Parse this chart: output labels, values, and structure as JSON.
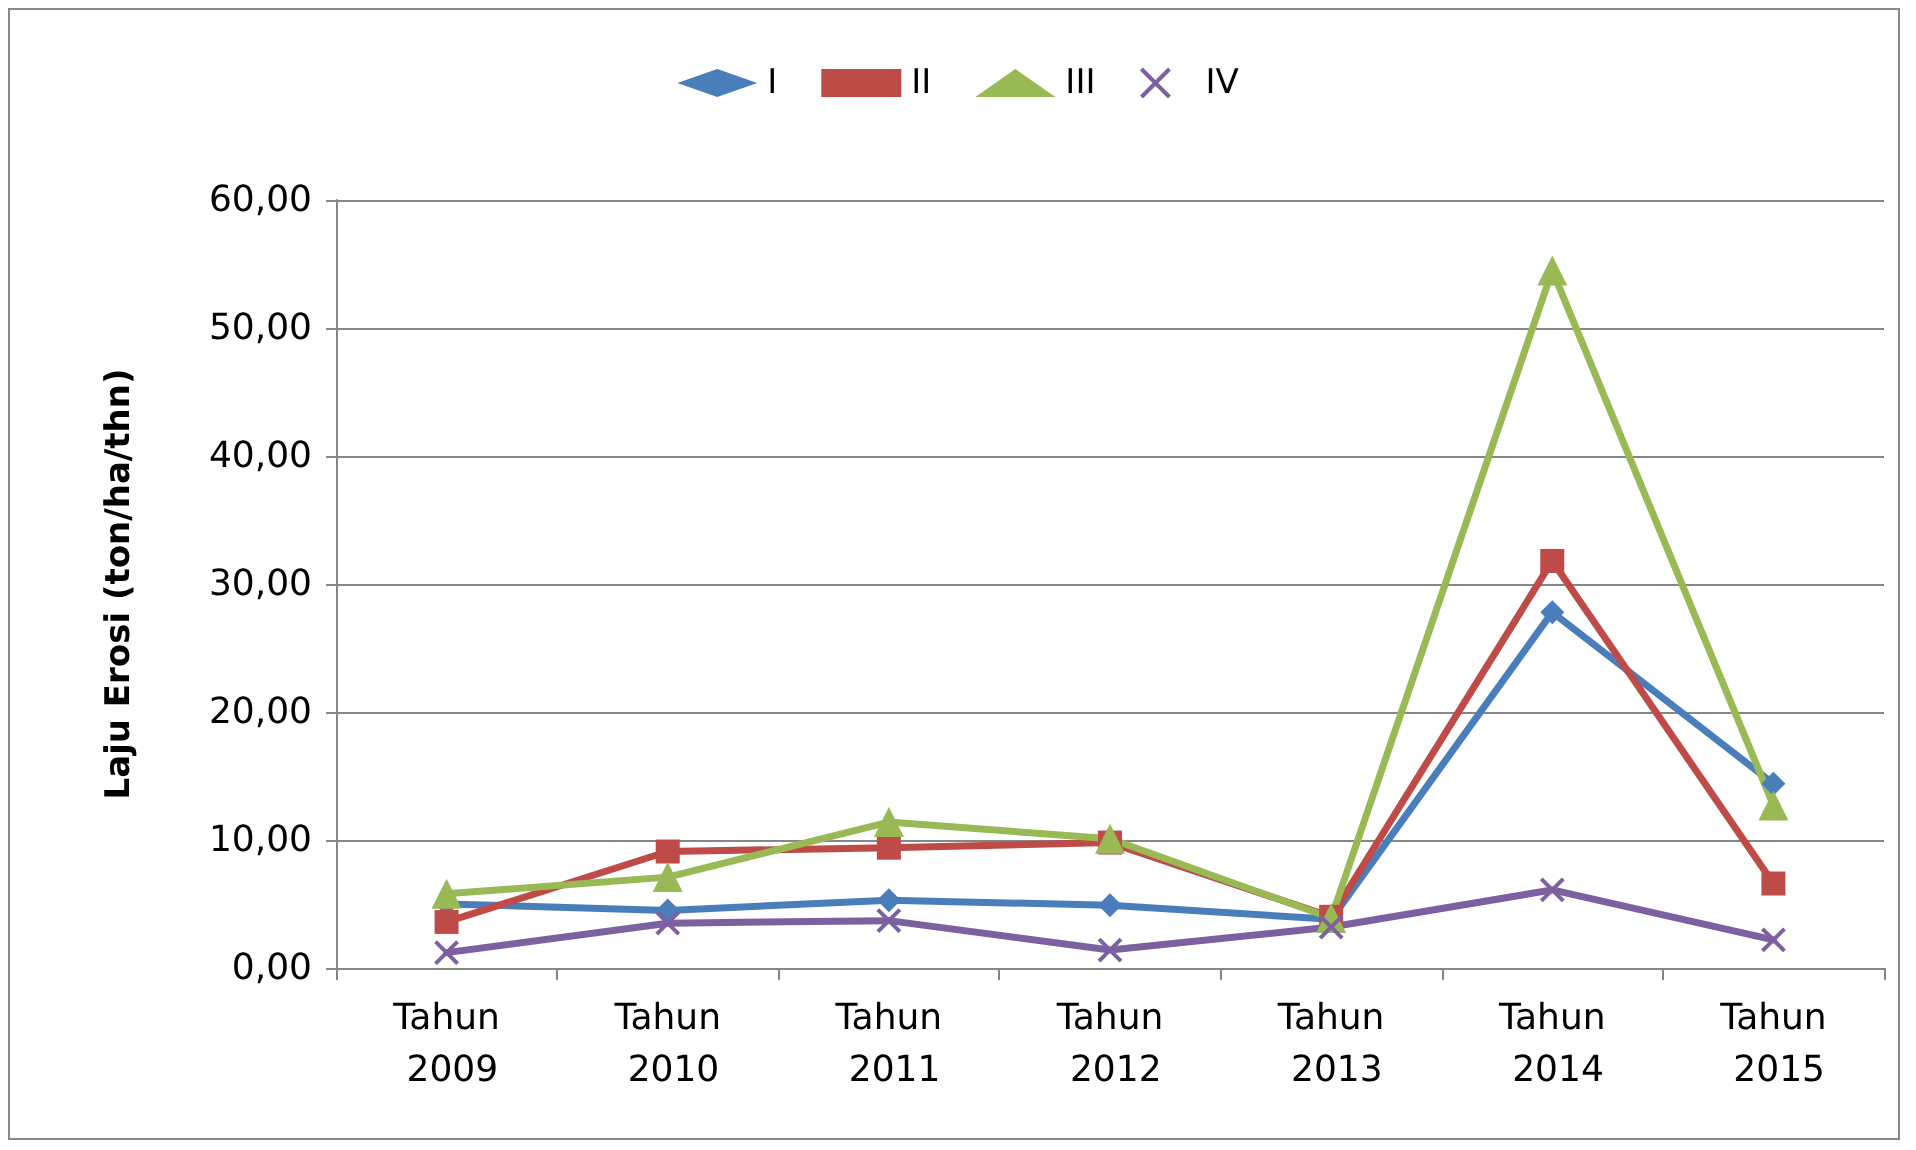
{
  "chart_data": {
    "type": "line",
    "ylabel": "Laju Erosi (ton/ha/thn)",
    "categories": [
      "Tahun 2009",
      "Tahun 2010",
      "Tahun 2011",
      "Tahun 2012",
      "Tahun 2013",
      "Tahun 2014",
      "Tahun 2015"
    ],
    "series": [
      {
        "name": "I",
        "color": "#4a7ebb",
        "marker": "diamond",
        "values": [
          5.0,
          4.5,
          5.3,
          4.9,
          3.8,
          27.8,
          14.4
        ]
      },
      {
        "name": "II",
        "color": "#be4b48",
        "marker": "square",
        "values": [
          3.6,
          9.1,
          9.4,
          9.8,
          4.0,
          31.8,
          6.6
        ]
      },
      {
        "name": "III",
        "color": "#98b954",
        "marker": "triangle",
        "values": [
          5.8,
          7.1,
          11.4,
          10.1,
          3.9,
          54.5,
          12.7
        ]
      },
      {
        "name": "IV",
        "color": "#7d60a0",
        "marker": "cross",
        "values": [
          1.2,
          3.5,
          3.7,
          1.4,
          3.2,
          6.1,
          2.2
        ]
      }
    ],
    "ylim": [
      0,
      60
    ],
    "yticks": [
      {
        "value": 0,
        "label": "0,00"
      },
      {
        "value": 10,
        "label": "10,00"
      },
      {
        "value": 20,
        "label": "20,00"
      },
      {
        "value": 30,
        "label": "30,00"
      },
      {
        "value": 40,
        "label": "40,00"
      },
      {
        "value": 50,
        "label": "50,00"
      },
      {
        "value": 60,
        "label": "60,00"
      }
    ],
    "grid": "y",
    "legend": "top"
  }
}
